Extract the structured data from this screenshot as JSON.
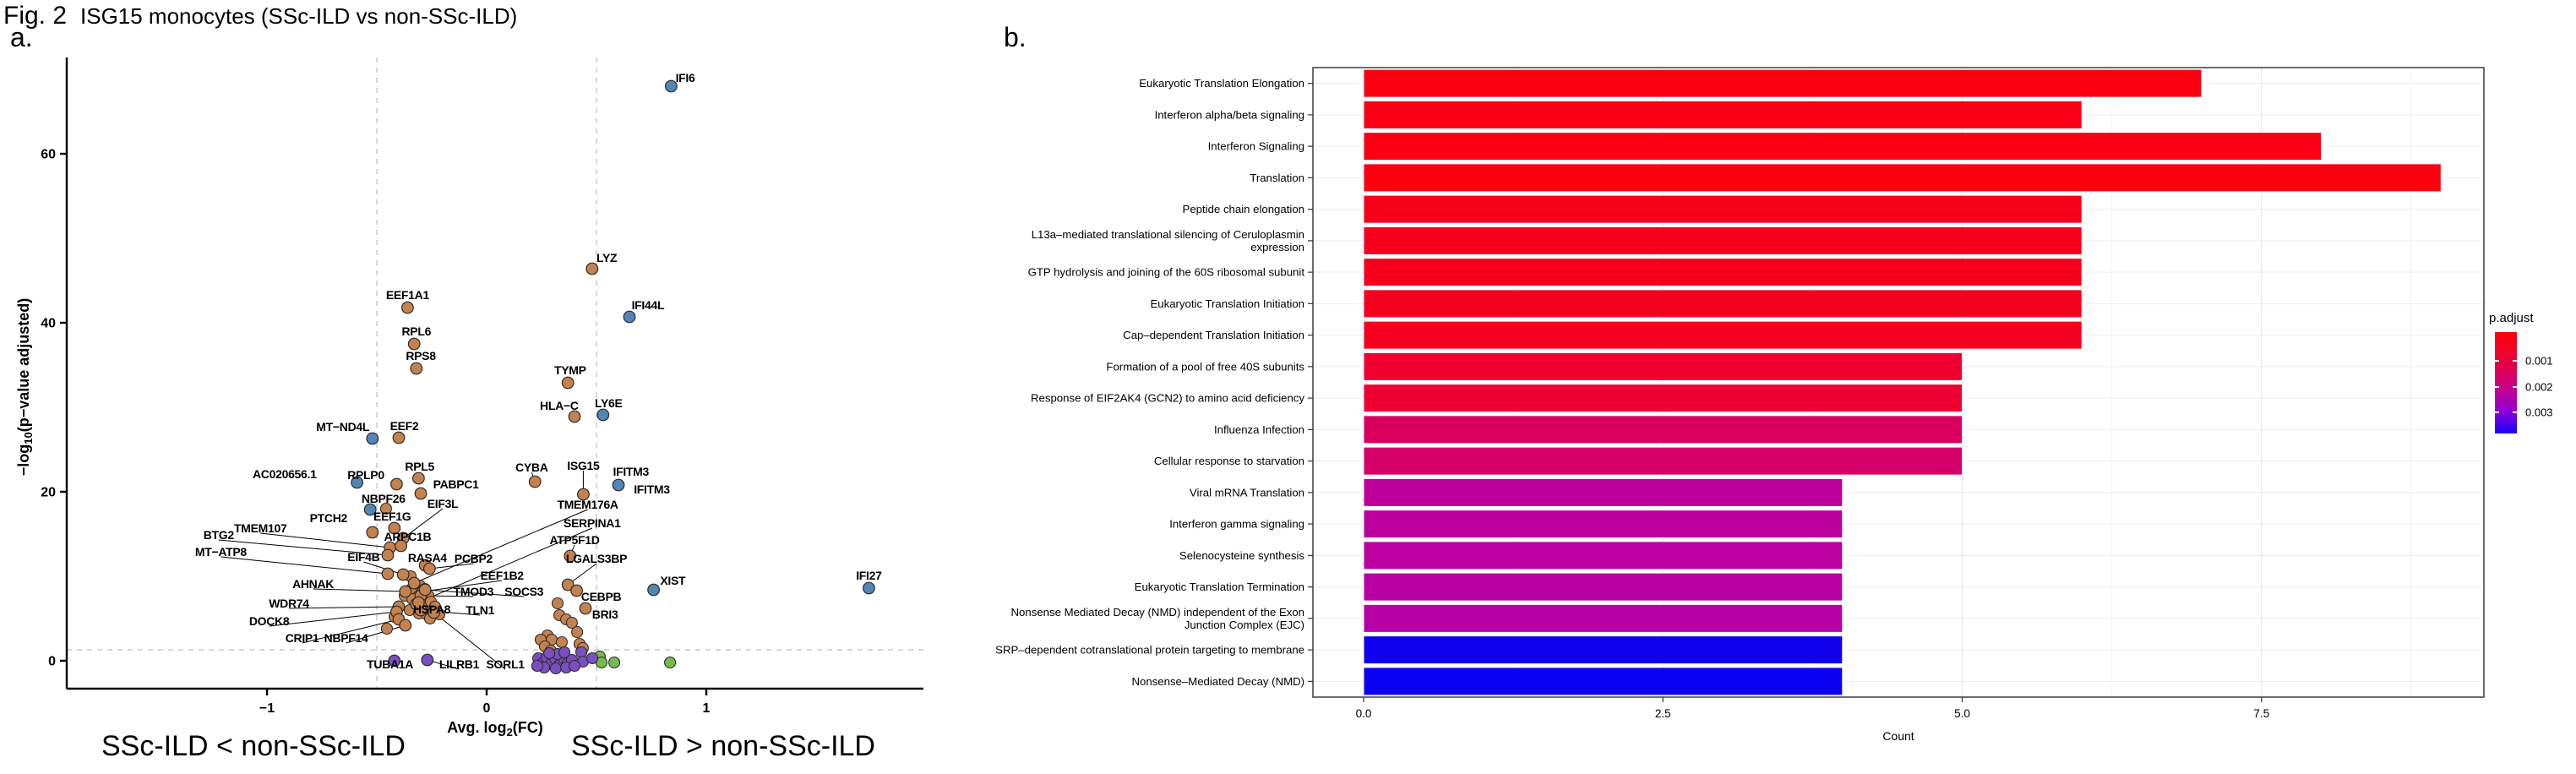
{
  "figure": {
    "fig_label": "Fig. 2",
    "title": "ISG15 monocytes (SSc-ILD vs non-SSc-ILD)",
    "panel_a_letter": "a.",
    "panel_b_letter": "b.",
    "annotation_left": "SSc-ILD < non-SSc-ILD",
    "annotation_right": "SSc-ILD > non-SSc-ILD"
  },
  "legend": {
    "title": "p.adjust",
    "tick_labels": [
      "0.001",
      "0.002",
      "0.003"
    ]
  },
  "chart_data": [
    {
      "type": "scatter",
      "id": "volcano",
      "title": "ISG15 monocytes (SSc-ILD vs non-SSc-ILD)",
      "xlabel": "Avg. log2(FC)",
      "xlabel_parts": [
        "Avg. log",
        "2",
        "(FC)"
      ],
      "ylabel": "-log10(p-value adjusted)",
      "ylabel_parts": [
        "−log",
        "10",
        "(p−value adjusted)"
      ],
      "xlim": [
        -1.9,
        2.0
      ],
      "ylim": [
        -3,
        71
      ],
      "xticks": [
        -1,
        0,
        1
      ],
      "xtick_labels": [
        "−1",
        "0",
        "1"
      ],
      "yticks": [
        0,
        20,
        40,
        60
      ],
      "ytick_labels": [
        "0",
        "20",
        "40",
        "60"
      ],
      "threshold_vlines": [
        -0.5,
        0.5
      ],
      "threshold_hline": 1.3,
      "grid": false,
      "palette": {
        "orange": "#c5824e",
        "blue": "#5086b8",
        "purple": "#7a4fc0",
        "green": "#76b94d"
      },
      "point_stroke": "#2b2b2b",
      "points": [
        {
          "g": "IFI6",
          "x": 0.84,
          "y": 68.0,
          "c": "blue",
          "lx": 0.86,
          "ly": 68.9,
          "a": "s",
          "ld": false
        },
        {
          "g": "LYZ",
          "x": 0.48,
          "y": 46.4,
          "c": "orange",
          "lx": 0.5,
          "ly": 47.6,
          "a": "s",
          "ld": false
        },
        {
          "g": "EEF1A1",
          "x": -0.36,
          "y": 41.8,
          "c": "orange",
          "lx": -0.36,
          "ly": 43.2,
          "a": "m",
          "ld": false
        },
        {
          "g": "IFI44L",
          "x": 0.65,
          "y": 40.7,
          "c": "blue",
          "lx": 0.66,
          "ly": 42.0,
          "a": "s",
          "ld": false
        },
        {
          "g": "RPL6",
          "x": -0.33,
          "y": 37.5,
          "c": "orange",
          "lx": -0.32,
          "ly": 38.9,
          "a": "m",
          "ld": false
        },
        {
          "g": "RPS8",
          "x": -0.32,
          "y": 34.6,
          "c": "orange",
          "lx": -0.3,
          "ly": 36.0,
          "a": "m",
          "ld": false
        },
        {
          "g": "TYMP",
          "x": 0.37,
          "y": 32.9,
          "c": "orange",
          "lx": 0.38,
          "ly": 34.3,
          "a": "m",
          "ld": false
        },
        {
          "g": "HLA−C",
          "x": 0.4,
          "y": 28.9,
          "c": "orange",
          "lx": 0.33,
          "ly": 30.1,
          "a": "m",
          "ld": false
        },
        {
          "g": "LY6E",
          "x": 0.53,
          "y": 29.1,
          "c": "blue",
          "lx": 0.555,
          "ly": 30.4,
          "a": "m",
          "ld": false
        },
        {
          "g": "EEF2",
          "x": -0.4,
          "y": 26.4,
          "c": "orange",
          "lx": -0.375,
          "ly": 27.7,
          "a": "m",
          "ld": false
        },
        {
          "g": "MT−ND4L",
          "x": -0.52,
          "y": 26.3,
          "c": "blue",
          "lx": -0.655,
          "ly": 27.6,
          "a": "m",
          "ld": false
        },
        {
          "g": "RPL5",
          "x": -0.31,
          "y": 21.6,
          "c": "orange",
          "lx": -0.305,
          "ly": 22.9,
          "a": "m",
          "ld": false
        },
        {
          "g": "AC020656.1",
          "x": -0.59,
          "y": 21.1,
          "c": "blue",
          "lx": -0.92,
          "ly": 22.0,
          "a": "m",
          "ld": false
        },
        {
          "g": "RPLP0",
          "x": -0.41,
          "y": 20.9,
          "c": "orange",
          "lx": -0.55,
          "ly": 21.9,
          "a": "m",
          "ld": false
        },
        {
          "g": "PABPC1",
          "x": -0.3,
          "y": 19.8,
          "c": "orange",
          "lx": -0.14,
          "ly": 20.8,
          "a": "m",
          "ld": false
        },
        {
          "g": "CYBA",
          "x": 0.22,
          "y": 21.2,
          "c": "orange",
          "lx": 0.205,
          "ly": 22.8,
          "a": "m",
          "ld": true
        },
        {
          "g": "ISG15",
          "x": 0.44,
          "y": 19.7,
          "c": "orange",
          "lx": 0.44,
          "ly": 23.0,
          "a": "m",
          "ld": true
        },
        {
          "g": "IFITM3",
          "x": 0.6,
          "y": 20.8,
          "c": "blue",
          "lx": 0.575,
          "ly": 22.3,
          "a": "s",
          "ld": false
        },
        {
          "g": "NBPF26",
          "x": -0.53,
          "y": 17.9,
          "c": "blue",
          "lx": -0.47,
          "ly": 19.1,
          "a": "m",
          "ld": false
        },
        {
          "g": "EIF3L",
          "x": -0.38,
          "y": 14.5,
          "c": "orange",
          "lx": -0.2,
          "ly": 18.5,
          "a": "m",
          "ld": true
        },
        {
          "g": "EEF1G",
          "x": -0.42,
          "y": 15.7,
          "c": "orange",
          "lx": -0.43,
          "ly": 17.0,
          "a": "m",
          "ld": false
        },
        {
          "g": "PTCH2",
          "x": -0.52,
          "y": 15.2,
          "c": "orange",
          "lx": -0.72,
          "ly": 16.8,
          "a": "m",
          "ld": false
        },
        {
          "g": "TMEM107",
          "x": -0.44,
          "y": 13.4,
          "c": "orange",
          "lx": -1.03,
          "ly": 15.6,
          "a": "m",
          "ld": true
        },
        {
          "g": "ARPC1B",
          "x": -0.39,
          "y": 13.6,
          "c": "orange",
          "lx": -0.36,
          "ly": 14.6,
          "a": "m",
          "ld": true
        },
        {
          "g": "BTG2",
          "x": -0.45,
          "y": 12.5,
          "c": "orange",
          "lx": -1.22,
          "ly": 14.8,
          "a": "m",
          "ld": true
        },
        {
          "g": "MT−ATP8",
          "x": -0.45,
          "y": 10.3,
          "c": "orange",
          "lx": -1.21,
          "ly": 12.8,
          "a": "m",
          "ld": true
        },
        {
          "g": "EIF4B",
          "x": -0.38,
          "y": 10.2,
          "c": "orange",
          "lx": -0.56,
          "ly": 12.2,
          "a": "m",
          "ld": true
        },
        {
          "g": "RASA4",
          "x": -0.28,
          "y": 11.3,
          "c": "orange",
          "lx": -0.27,
          "ly": 12.1,
          "a": "m",
          "ld": false
        },
        {
          "g": "PCBP2",
          "x": -0.26,
          "y": 10.9,
          "c": "orange",
          "lx": -0.06,
          "ly": 12.0,
          "a": "m",
          "ld": true
        },
        {
          "g": "EEF1B2",
          "x": -0.29,
          "y": 8.2,
          "c": "orange",
          "lx": 0.07,
          "ly": 10.0,
          "a": "m",
          "ld": true
        },
        {
          "g": "TMOD3",
          "x": -0.3,
          "y": 7.7,
          "c": "orange",
          "lx": -0.06,
          "ly": 8.1,
          "a": "m",
          "ld": true
        },
        {
          "g": "SOCS3",
          "x": -0.28,
          "y": 8.4,
          "c": "orange",
          "lx": 0.17,
          "ly": 8.1,
          "a": "m",
          "ld": true
        },
        {
          "g": "AHNAK",
          "x": -0.37,
          "y": 8.2,
          "c": "orange",
          "lx": -0.79,
          "ly": 9.0,
          "a": "m",
          "ld": true
        },
        {
          "g": "WDR74",
          "x": -0.4,
          "y": 6.4,
          "c": "orange",
          "lx": -0.9,
          "ly": 6.7,
          "a": "m",
          "ld": true
        },
        {
          "g": "DOCK8",
          "x": -0.41,
          "y": 5.8,
          "c": "orange",
          "lx": -0.99,
          "ly": 4.6,
          "a": "m",
          "ld": true
        },
        {
          "g": "CRIP1",
          "x": -0.4,
          "y": 4.9,
          "c": "orange",
          "lx": -0.84,
          "ly": 2.6,
          "a": "m",
          "ld": true
        },
        {
          "g": "NBPF14",
          "x": -0.37,
          "y": 4.2,
          "c": "orange",
          "lx": -0.64,
          "ly": 2.6,
          "a": "m",
          "ld": true
        },
        {
          "g": "HSPA8",
          "x": -0.32,
          "y": 6.7,
          "c": "orange",
          "lx": -0.25,
          "ly": 6.0,
          "a": "m",
          "ld": false
        },
        {
          "g": "TLN1",
          "x": -0.3,
          "y": 6.0,
          "c": "orange",
          "lx": -0.03,
          "ly": 5.9,
          "a": "m",
          "ld": true
        },
        {
          "g": "TMEM176A",
          "x": -0.33,
          "y": 9.2,
          "c": "orange",
          "lx": 0.46,
          "ly": 18.4,
          "a": "m",
          "ld": true
        },
        {
          "g": "SERPINA1",
          "x": -0.31,
          "y": 6.9,
          "c": "orange",
          "lx": 0.48,
          "ly": 16.2,
          "a": "m",
          "ld": true
        },
        {
          "g": "ATP5F1D",
          "x": 0.38,
          "y": 12.4,
          "c": "orange",
          "lx": 0.4,
          "ly": 14.2,
          "a": "m",
          "ld": true
        },
        {
          "g": "LGALS3BP",
          "x": 0.37,
          "y": 9.0,
          "c": "orange",
          "lx": 0.5,
          "ly": 12.0,
          "a": "m",
          "ld": true
        },
        {
          "g": "CEBPB",
          "x": 0.41,
          "y": 8.3,
          "c": "orange",
          "lx": 0.43,
          "ly": 7.5,
          "a": "s",
          "ld": false
        },
        {
          "g": "BRI3",
          "x": 0.45,
          "y": 6.2,
          "c": "orange",
          "lx": 0.48,
          "ly": 5.4,
          "a": "s",
          "ld": false
        },
        {
          "g": "XIST",
          "x": 0.76,
          "y": 8.4,
          "c": "blue",
          "lx": 0.79,
          "ly": 9.4,
          "a": "s",
          "ld": false
        },
        {
          "g": "IFI27",
          "x": 1.74,
          "y": 8.6,
          "c": "blue",
          "lx": 1.74,
          "ly": 10.0,
          "a": "m",
          "ld": false
        },
        {
          "g": "SORL1",
          "x": -0.24,
          "y": 5.7,
          "c": "orange",
          "lx": 0.085,
          "ly": -0.5,
          "a": "m",
          "ld": true
        },
        {
          "g": "TUBA1A",
          "x": -0.42,
          "y": 0.0,
          "c": "purple",
          "lx": -0.44,
          "ly": -0.5,
          "a": "m",
          "ld": false
        },
        {
          "g": "LILRB1",
          "x": -0.27,
          "y": 0.1,
          "c": "purple",
          "lx": -0.125,
          "ly": -0.5,
          "a": "m",
          "ld": true
        }
      ],
      "extra_labels": [
        {
          "text": "IFITM3",
          "x": 0.67,
          "y": 20.2,
          "a": "s"
        }
      ],
      "extra_points": {
        "orange": [
          [
            -0.458,
            18.0
          ],
          [
            -0.373,
            7.7
          ],
          [
            -0.342,
            8.5
          ],
          [
            -0.323,
            8.2
          ],
          [
            -0.304,
            8.9
          ],
          [
            -0.281,
            8.5
          ],
          [
            -0.312,
            7.6
          ],
          [
            -0.338,
            7.3
          ],
          [
            -0.292,
            7.1
          ],
          [
            -0.265,
            7.7
          ],
          [
            -0.323,
            6.5
          ],
          [
            -0.296,
            6.3
          ],
          [
            -0.277,
            6.7
          ],
          [
            -0.35,
            6.0
          ],
          [
            -0.308,
            5.6
          ],
          [
            -0.273,
            5.5
          ],
          [
            -0.254,
            7.0
          ],
          [
            -0.235,
            6.4
          ],
          [
            -0.419,
            5.2
          ],
          [
            -0.258,
            5.0
          ],
          [
            -0.454,
            3.8
          ],
          [
            -0.346,
            10.0
          ],
          [
            -0.215,
            5.5
          ],
          [
            0.323,
            6.8
          ],
          [
            0.331,
            5.4
          ],
          [
            0.362,
            4.9
          ],
          [
            0.388,
            4.5
          ],
          [
            0.412,
            3.4
          ],
          [
            0.277,
            3.0
          ],
          [
            0.296,
            2.5
          ],
          [
            0.342,
            2.2
          ],
          [
            0.423,
            2.0
          ],
          [
            0.438,
            1.5
          ],
          [
            0.246,
            2.5
          ],
          [
            0.265,
            1.7
          ],
          [
            0.292,
            1.2
          ]
        ],
        "green": [
          [
            0.515,
            0.5
          ],
          [
            0.523,
            -0.2
          ],
          [
            0.581,
            -0.2
          ],
          [
            0.835,
            -0.2
          ]
        ],
        "purple": [
          [
            0.235,
            0.3
          ],
          [
            0.254,
            -0.3
          ],
          [
            0.273,
            0.4
          ],
          [
            0.292,
            -0.4
          ],
          [
            0.312,
            0.2
          ],
          [
            0.331,
            -0.5
          ],
          [
            0.35,
            0.3
          ],
          [
            0.369,
            -0.3
          ],
          [
            0.388,
            0.1
          ],
          [
            0.323,
            0.8
          ],
          [
            0.285,
            0.9
          ],
          [
            0.354,
            1.0
          ],
          [
            0.262,
            -0.8
          ],
          [
            0.315,
            -0.9
          ],
          [
            0.362,
            -0.8
          ],
          [
            0.431,
            1.0
          ],
          [
            0.438,
            -0.1
          ],
          [
            0.481,
            0.3
          ],
          [
            0.4,
            -0.6
          ],
          [
            0.23,
            -0.6
          ]
        ]
      }
    },
    {
      "type": "bar",
      "id": "pathway-enrichment",
      "xlabel": "Count",
      "xticks": [
        0,
        2.5,
        5,
        7.5
      ],
      "xtick_labels": [
        "0.0",
        "2.5",
        "5.0",
        "7.5"
      ],
      "xlim": [
        -0.44,
        9.4
      ],
      "grid": true,
      "legend_title": "p.adjust",
      "legend_position": "right",
      "rows": [
        {
          "lines": [
            "Eukaryotic Translation Elongation"
          ],
          "count": 7,
          "color": "#fb0010"
        },
        {
          "lines": [
            "Interferon alpha/beta signaling"
          ],
          "count": 6,
          "color": "#fa0014"
        },
        {
          "lines": [
            "Interferon Signaling"
          ],
          "count": 8,
          "color": "#fa0012"
        },
        {
          "lines": [
            "Translation"
          ],
          "count": 9,
          "color": "#fb000e"
        },
        {
          "lines": [
            "Peptide chain elongation"
          ],
          "count": 6,
          "color": "#f70019"
        },
        {
          "lines": [
            "L13a–mediated translational silencing of Ceruloplasmin",
            "expression"
          ],
          "count": 6,
          "color": "#f6001b"
        },
        {
          "lines": [
            "GTP hydrolysis and joining of the 60S ribosomal subunit"
          ],
          "count": 6,
          "color": "#f6001b"
        },
        {
          "lines": [
            "Eukaryotic Translation Initiation"
          ],
          "count": 6,
          "color": "#f5001d"
        },
        {
          "lines": [
            "Cap–dependent Translation Initiation"
          ],
          "count": 6,
          "color": "#f5001e"
        },
        {
          "lines": [
            "Formation of a pool of free 40S subunits"
          ],
          "count": 5,
          "color": "#ef0031"
        },
        {
          "lines": [
            "Response of EIF2AK4 (GCN2) to amino acid deficiency"
          ],
          "count": 5,
          "color": "#ee0034"
        },
        {
          "lines": [
            "Influenza Infection"
          ],
          "count": 5,
          "color": "#d9005d"
        },
        {
          "lines": [
            "Cellular response to starvation"
          ],
          "count": 5,
          "color": "#d50069"
        },
        {
          "lines": [
            "Viral mRNA Translation"
          ],
          "count": 4,
          "color": "#bd009a"
        },
        {
          "lines": [
            "Interferon gamma signaling"
          ],
          "count": 4,
          "color": "#bc009d"
        },
        {
          "lines": [
            "Selenocysteine synthesis"
          ],
          "count": 4,
          "color": "#bb009f"
        },
        {
          "lines": [
            "Eukaryotic Translation Termination"
          ],
          "count": 4,
          "color": "#b900a2"
        },
        {
          "lines": [
            "Nonsense Mediated Decay (NMD) independent of the Exon",
            "Junction Complex (EJC)"
          ],
          "count": 4,
          "color": "#b700a6"
        },
        {
          "lines": [
            "SRP–dependent cotranslational protein targeting to membrane"
          ],
          "count": 4,
          "color": "#1000ee"
        },
        {
          "lines": [
            "Nonsense–Mediated Decay (NMD)"
          ],
          "count": 4,
          "color": "#0c00f3"
        }
      ]
    }
  ]
}
